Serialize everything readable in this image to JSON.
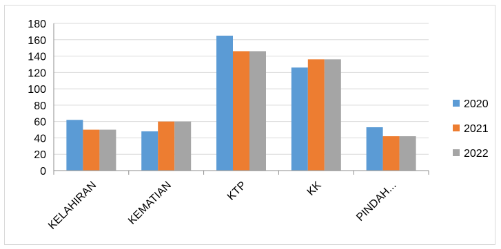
{
  "chart_data": {
    "type": "bar",
    "title": "",
    "xlabel": "",
    "ylabel": "",
    "categories": [
      "KELAHIRAN",
      "KEMATIAN",
      "KTP",
      "KK",
      "PINDAH..."
    ],
    "series": [
      {
        "name": "2020",
        "color": "#5b9bd5",
        "values": [
          62,
          48,
          165,
          126,
          53
        ]
      },
      {
        "name": "2021",
        "color": "#ed7d31",
        "values": [
          50,
          60,
          146,
          136,
          42
        ]
      },
      {
        "name": "2022",
        "color": "#a5a5a5",
        "values": [
          50,
          60,
          146,
          136,
          42
        ]
      }
    ],
    "ylim": [
      0,
      180
    ],
    "yticks": [
      "0",
      "20",
      "40",
      "60",
      "80",
      "100",
      "120",
      "140",
      "160",
      "180"
    ],
    "grid": true,
    "legend_position": "right"
  }
}
